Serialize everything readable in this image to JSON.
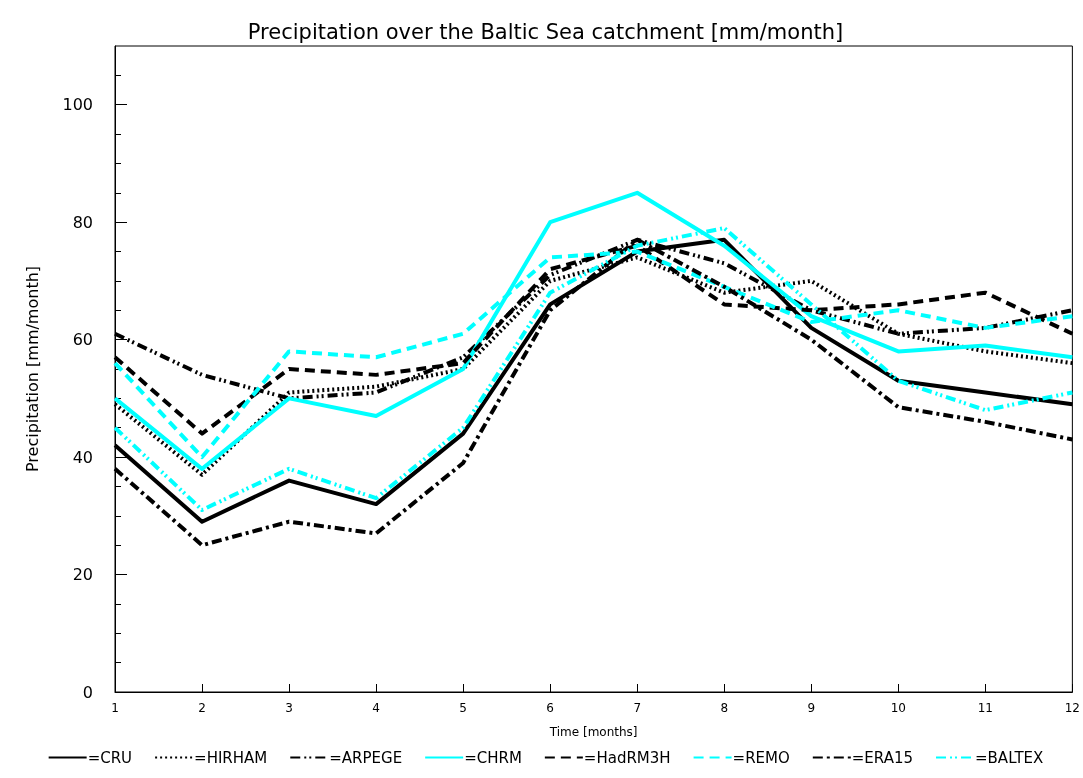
{
  "chart_data": {
    "type": "line",
    "title": "Precipitation over the Baltic Sea catchment [mm/month]",
    "xlabel": "Time [months]",
    "ylabel": "Precipitation [mm/month]",
    "x": [
      1,
      2,
      3,
      4,
      5,
      6,
      7,
      8,
      9,
      10,
      11,
      12
    ],
    "xlim": [
      1,
      12
    ],
    "xticks": [
      1,
      2,
      3,
      4,
      5,
      6,
      7,
      8,
      9,
      10,
      11,
      12
    ],
    "ylim": [
      0,
      110
    ],
    "yticks": [
      0,
      20,
      40,
      60,
      80,
      100
    ],
    "grid": false,
    "legend": "bottom",
    "marker": "none",
    "series": [
      {
        "name": "=CRU",
        "color": "#000000",
        "line_style": "solid",
        "values": [
          42,
          29,
          36,
          32,
          44,
          66,
          75,
          77,
          62,
          53,
          51,
          49
        ]
      },
      {
        "name": "=HIRHAM",
        "color": "#000000",
        "line_style": "dotted",
        "values": [
          49,
          37,
          51,
          52,
          55,
          70,
          74,
          68,
          70,
          61,
          58,
          56
        ]
      },
      {
        "name": "=ARPEGE",
        "color": "#000000",
        "line_style": "dashdotdot",
        "values": [
          61,
          54,
          50,
          51,
          57,
          71,
          77,
          73,
          65,
          61,
          62,
          65
        ]
      },
      {
        "name": "=CHRM",
        "color": "#00ffff",
        "line_style": "solid",
        "values": [
          50,
          38,
          50,
          47,
          55,
          80,
          85,
          76,
          64,
          58,
          59,
          57
        ]
      },
      {
        "name": "=HadRM3H",
        "color": "#000000",
        "line_style": "dashed",
        "values": [
          57,
          44,
          55,
          54,
          56,
          72,
          76,
          66,
          65,
          66,
          68,
          61
        ]
      },
      {
        "name": "=REMO",
        "color": "#00ffff",
        "line_style": "dashed",
        "values": [
          56,
          40,
          58,
          57,
          61,
          74,
          75,
          69,
          63,
          65,
          62,
          64
        ]
      },
      {
        "name": "=ERA15",
        "color": "#000000",
        "line_style": "dashdot",
        "values": [
          38,
          25,
          29,
          27,
          39,
          65,
          77,
          69,
          60,
          48.5,
          46,
          43
        ]
      },
      {
        "name": "=BALTEX",
        "color": "#00ffff",
        "line_style": "dashdotdot",
        "values": [
          45,
          31,
          38,
          33,
          45,
          68,
          76,
          79,
          66,
          53,
          48,
          51
        ]
      }
    ]
  }
}
